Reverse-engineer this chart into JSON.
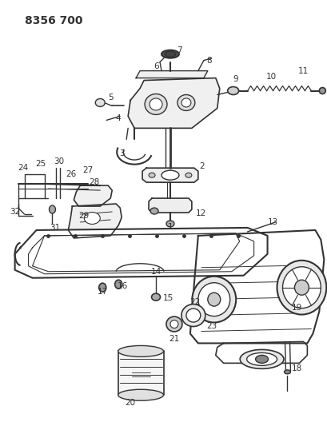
{
  "title": "8356 700",
  "bg_color": "#ffffff",
  "line_color": "#333333",
  "title_fontsize": 10,
  "label_fontsize": 7.5,
  "fig_width": 4.1,
  "fig_height": 5.33,
  "dpi": 100
}
